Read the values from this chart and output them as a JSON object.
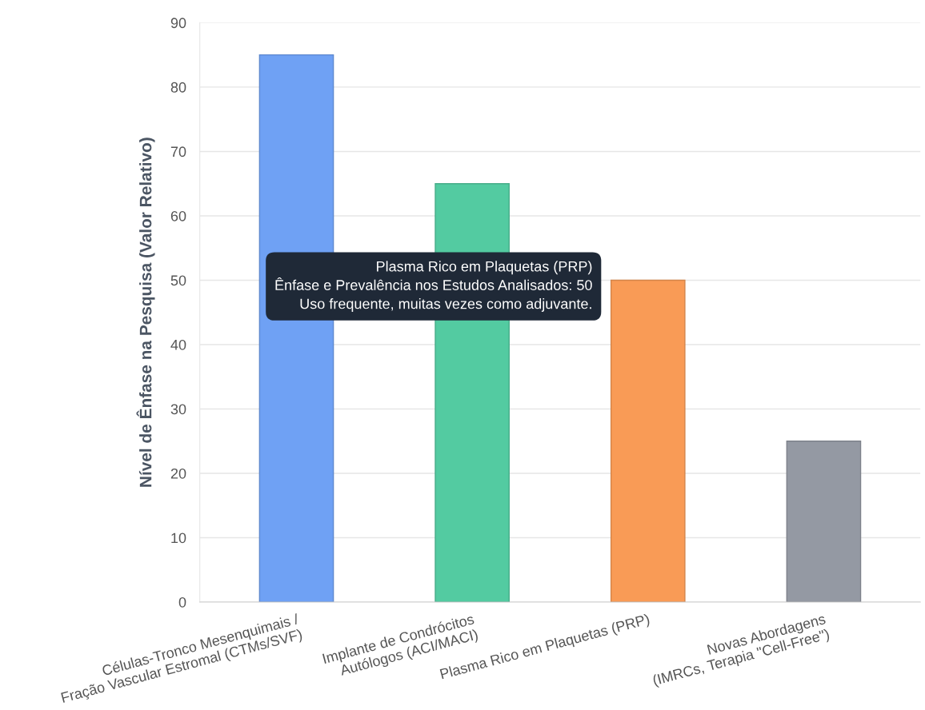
{
  "chart_data": {
    "type": "bar",
    "ylabel": "Nível de Ênfase na Pesquisa (Valor Relativo)",
    "categories": [
      "Células-Tronco Mesenquimais /\nFração Vascular Estromal (CTMs/SVF)",
      "Implante de Condrócitos\nAutólogos (ACI/MACI)",
      "Plasma Rico em Plaquetas (PRP)",
      "Novas Abordagens\n(IMRCs, Terapia \"Cell-Free\")"
    ],
    "values": [
      85,
      65,
      50,
      25
    ],
    "colors": [
      "#6fa1f4",
      "#53cba1",
      "#f99b56",
      "#9499a3"
    ],
    "ylim": [
      0,
      90
    ],
    "yticks": [
      0,
      10,
      20,
      30,
      40,
      50,
      60,
      70,
      80,
      90
    ],
    "grid": "y",
    "legend": false,
    "annotations": [
      "Plasma Rico em Plaquetas (PRP)\nÊnfase e Prevalência nos Estudos Analisados: 50\nUso frequente, muitas vezes como adjuvante."
    ]
  }
}
